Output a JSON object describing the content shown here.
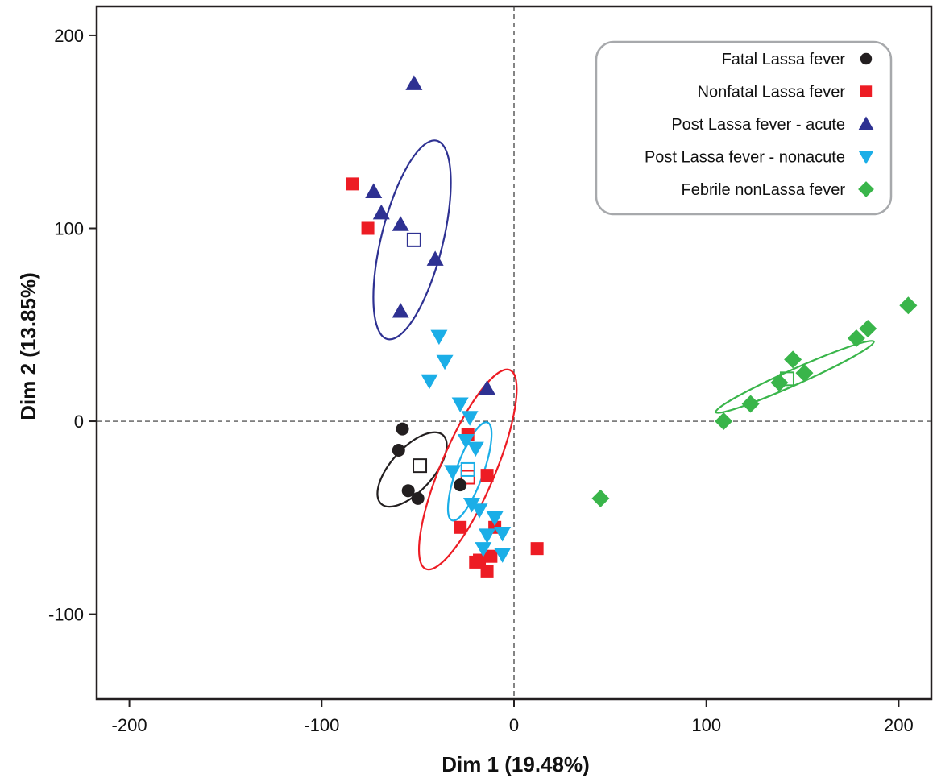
{
  "chart_data": {
    "type": "scatter",
    "title": "",
    "xlabel": "Dim 1 (19.48%)",
    "ylabel": "Dim 2 (13.85%)",
    "xlim": [
      -217,
      217
    ],
    "ylim": [
      -144,
      215
    ],
    "x_ticks": [
      -200,
      -100,
      0,
      100,
      200
    ],
    "y_ticks": [
      200,
      100,
      0,
      -100
    ],
    "reference_lines": {
      "x": 0,
      "y": 0,
      "style": "dashed"
    },
    "grid": false,
    "legend_position": "top-right",
    "series": [
      {
        "name": "Fatal Lassa fever",
        "marker": "circle",
        "color": "#231f20",
        "points": [
          [
            -58,
            -4
          ],
          [
            -60,
            -15
          ],
          [
            -55,
            -36
          ],
          [
            -50,
            -40
          ],
          [
            -28,
            -33
          ]
        ],
        "centroid": [
          -49,
          -23
        ],
        "ellipse": {
          "cx": -53,
          "cy": -25,
          "rx": 24,
          "ry": 11,
          "angle_deg": 48
        }
      },
      {
        "name": "Nonfatal Lassa fever",
        "marker": "square",
        "color": "#ed1c24",
        "points": [
          [
            -84,
            123
          ],
          [
            -76,
            100
          ],
          [
            -24,
            -7
          ],
          [
            -14,
            -28
          ],
          [
            -28,
            -55
          ],
          [
            -10,
            -55
          ],
          [
            -18,
            -72
          ],
          [
            -20,
            -73
          ],
          [
            -14,
            -78
          ],
          [
            -12,
            -70
          ],
          [
            12,
            -66
          ]
        ],
        "centroid": [
          -24,
          -29
        ],
        "ellipse": {
          "cx": -24,
          "cy": -25,
          "rx": 56,
          "ry": 14,
          "angle_deg": 67
        }
      },
      {
        "name": "Post Lassa fever - acute",
        "marker": "triangle-up",
        "color": "#2e3192",
        "points": [
          [
            -52,
            175
          ],
          [
            -73,
            119
          ],
          [
            -69,
            108
          ],
          [
            -59,
            102
          ],
          [
            -41,
            84
          ],
          [
            -59,
            57
          ],
          [
            -14,
            17
          ]
        ],
        "centroid": [
          -52,
          94
        ],
        "ellipse": {
          "cx": -53,
          "cy": 94,
          "rx": 53,
          "ry": 16,
          "angle_deg": 76
        }
      },
      {
        "name": "Post Lassa fever - nonacute",
        "marker": "triangle-down",
        "color": "#1baee7",
        "points": [
          [
            -39,
            44
          ],
          [
            -36,
            31
          ],
          [
            -44,
            21
          ],
          [
            -28,
            9
          ],
          [
            -23,
            2
          ],
          [
            -25,
            -10
          ],
          [
            -20,
            -14
          ],
          [
            -32,
            -26
          ],
          [
            -22,
            -43
          ],
          [
            -18,
            -46
          ],
          [
            -10,
            -50
          ],
          [
            -6,
            -58
          ],
          [
            -14,
            -59
          ],
          [
            -16,
            -66
          ],
          [
            -6,
            -69
          ]
        ],
        "centroid": [
          -24,
          -25
        ],
        "ellipse": {
          "cx": -23,
          "cy": -26,
          "rx": 27,
          "ry": 7,
          "angle_deg": 70
        }
      },
      {
        "name": "Febrile nonLassa fever",
        "marker": "diamond",
        "color": "#39b54a",
        "points": [
          [
            45,
            -40
          ],
          [
            109,
            0
          ],
          [
            123,
            9
          ],
          [
            138,
            20
          ],
          [
            145,
            32
          ],
          [
            151,
            25
          ],
          [
            178,
            43
          ],
          [
            184,
            48
          ],
          [
            205,
            60
          ]
        ],
        "centroid": [
          142,
          22
        ],
        "ellipse": {
          "cx": 146,
          "cy": 23,
          "rx": 45,
          "ry": 4,
          "angle_deg": 24
        }
      }
    ]
  }
}
